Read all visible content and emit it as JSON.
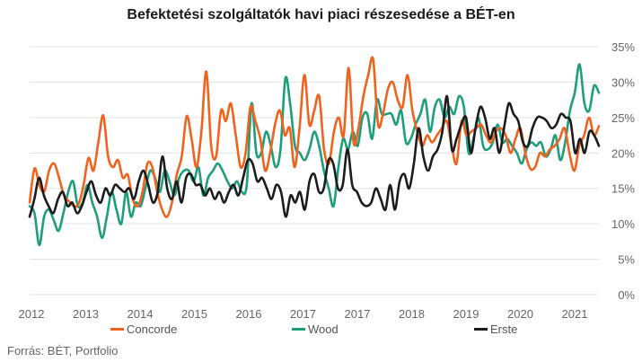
{
  "chart_data": {
    "type": "line",
    "title": "Befektetési szolgáltatók havi piaci részesedése a BÉT-en",
    "source": "Forrás: BÉT, Portfolio",
    "xlabel": "",
    "ylabel": "",
    "x_ticks": [
      "2012",
      "2013",
      "2014",
      "2015",
      "2016",
      "2017",
      "2017",
      "2018",
      "2019",
      "2020",
      "2021"
    ],
    "y_ticks": [
      "0%",
      "5%",
      "10%",
      "15%",
      "20%",
      "25%",
      "30%",
      "35%"
    ],
    "ylim": [
      0,
      35
    ],
    "y_unit": "%",
    "grid": "horizontal",
    "legend_position": "bottom",
    "colors": {
      "Concorde": "#f0631f",
      "Wood": "#1f9e7c",
      "Erste": "#1c1c1c",
      "grid": "#e3e3e3",
      "tick": "#666666"
    },
    "series": [
      {
        "name": "Concorde",
        "values": [
          13.0,
          17.8,
          15.4,
          14.6,
          17.6,
          18.5,
          16.5,
          14.0,
          13.2,
          12.5,
          12.8,
          15.5,
          19.3,
          17.5,
          21.5,
          25.3,
          19.5,
          18.0,
          19.0,
          16.5,
          16.9,
          13.5,
          12.5,
          14.5,
          18.5,
          18.0,
          14.5,
          12.0,
          11.0,
          13.0,
          17.0,
          19.5,
          25.2,
          22.0,
          18.0,
          23.0,
          31.5,
          21.0,
          19.5,
          26.0,
          24.5,
          27.0,
          22.5,
          18.0,
          20.0,
          26.5,
          24.5,
          22.0,
          17.5,
          20.0,
          24.0,
          26.0,
          22.5,
          23.5,
          18.0,
          23.5,
          31.0,
          24.0,
          26.0,
          28.0,
          20.5,
          18.5,
          23.0,
          25.0,
          22.5,
          32.0,
          21.5,
          23.5,
          28.0,
          31.0,
          33.2,
          24.0,
          25.5,
          29.0,
          30.0,
          27.5,
          26.5,
          31.0,
          26.0,
          23.0,
          21.0,
          22.5,
          21.5,
          22.5,
          23.5,
          24.5,
          21.0,
          18.5,
          24.5,
          22.5,
          23.0,
          23.5,
          24.0,
          22.5,
          21.5,
          23.0,
          23.5,
          22.5,
          20.0,
          22.0,
          23.5,
          20.0,
          17.8,
          18.0,
          20.0,
          19.5,
          20.5,
          21.0,
          22.0,
          23.5,
          20.0,
          17.5,
          21.0,
          22.5,
          25.0,
          22.5,
          23.8
        ]
      },
      {
        "name": "Wood",
        "values": [
          12.5,
          11.5,
          7.0,
          11.0,
          12.0,
          10.5,
          9.0,
          11.5,
          14.5,
          16.0,
          12.5,
          13.0,
          15.5,
          13.0,
          11.0,
          8.0,
          11.0,
          14.5,
          12.0,
          10.0,
          14.5,
          11.0,
          13.0,
          12.5,
          15.0,
          17.5,
          16.5,
          14.5,
          17.5,
          16.0,
          14.0,
          16.5,
          17.5,
          17.5,
          16.0,
          18.0,
          14.0,
          16.5,
          17.5,
          18.5,
          17.5,
          16.0,
          15.0,
          16.0,
          14.5,
          15.5,
          27.0,
          20.0,
          20.0,
          23.0,
          21.0,
          18.0,
          20.5,
          30.5,
          27.0,
          21.0,
          20.0,
          19.0,
          20.5,
          23.0,
          21.0,
          17.5,
          15.0,
          12.5,
          18.0,
          22.0,
          20.5,
          23.0,
          21.0,
          25.0,
          25.5,
          22.0,
          27.5,
          25.5,
          25.5,
          25.5,
          24.0,
          26.0,
          21.5,
          22.0,
          24.0,
          25.5,
          27.5,
          23.0,
          26.5,
          27.5,
          25.0,
          26.5,
          25.5,
          28.0,
          26.5,
          20.0,
          22.0,
          25.0,
          21.0,
          20.5,
          21.5,
          24.0,
          21.5,
          22.0,
          21.0,
          20.0,
          18.5,
          20.5,
          21.5,
          21.0,
          21.5,
          19.5,
          20.5,
          22.5,
          19.0,
          21.5,
          26.0,
          28.5,
          32.5,
          27.0,
          26.0,
          29.5,
          28.5
        ]
      },
      {
        "name": "Erste",
        "values": [
          11.0,
          13.5,
          16.5,
          14.0,
          12.5,
          11.5,
          13.5,
          14.5,
          12.5,
          13.0,
          11.5,
          12.5,
          14.5,
          16.0,
          14.0,
          13.0,
          15.0,
          14.0,
          15.5,
          15.0,
          14.5,
          15.0,
          13.5,
          16.0,
          17.5,
          15.5,
          13.0,
          14.5,
          19.5,
          15.0,
          13.5,
          16.0,
          13.0,
          16.5,
          17.0,
          15.5,
          15.5,
          14.0,
          15.0,
          13.5,
          14.5,
          13.0,
          14.5,
          15.5,
          14.0,
          16.5,
          19.0,
          18.5,
          16.0,
          16.5,
          15.0,
          13.5,
          15.5,
          14.5,
          11.0,
          14.0,
          13.0,
          14.5,
          12.0,
          16.0,
          17.0,
          14.5,
          15.0,
          19.0,
          18.5,
          15.0,
          15.5,
          20.5,
          15.5,
          14.5,
          13.0,
          12.5,
          13.0,
          15.0,
          13.5,
          12.0,
          15.5,
          12.0,
          16.0,
          17.0,
          15.0,
          18.5,
          23.5,
          19.5,
          17.5,
          19.5,
          20.5,
          23.0,
          28.0,
          20.5,
          22.0,
          24.0,
          25.0,
          20.0,
          23.5,
          26.5,
          25.0,
          22.0,
          23.5,
          20.0,
          23.5,
          27.0,
          25.5,
          24.5,
          21.5,
          21.0,
          23.5,
          25.0,
          25.0,
          24.5,
          23.5,
          24.0,
          25.5,
          25.0,
          24.5,
          20.0,
          22.0,
          20.0,
          23.0,
          22.5,
          21.0
        ]
      }
    ]
  }
}
